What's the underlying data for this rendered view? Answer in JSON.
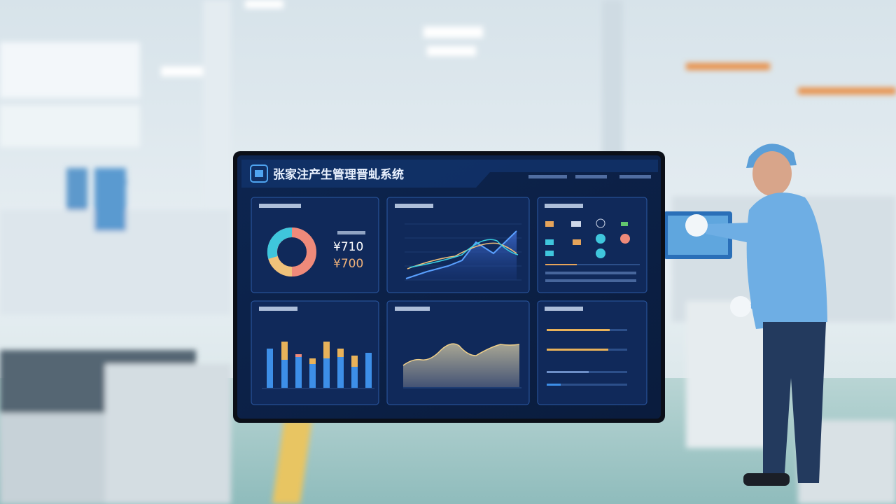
{
  "screen": {
    "title": "张家注产生管理晋虬系统",
    "kpi": [
      "¥710",
      "¥700"
    ]
  }
}
